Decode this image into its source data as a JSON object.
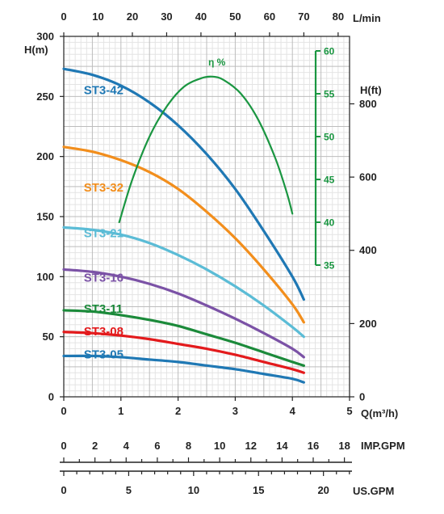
{
  "chart_data": {
    "type": "line",
    "title": "",
    "x_axis": {
      "unit": "Q(m³/h)",
      "range": [
        0,
        5
      ],
      "ticks": [
        0,
        1,
        2,
        3,
        4,
        5
      ]
    },
    "x_top_axis": {
      "unit": "L/min",
      "range": [
        0,
        83.33
      ],
      "ticks": [
        0,
        10,
        20,
        30,
        40,
        50,
        60,
        70,
        80
      ]
    },
    "y_axis": {
      "unit": "H(m)",
      "range": [
        0,
        300
      ],
      "ticks": [
        0,
        50,
        100,
        150,
        200,
        250,
        300
      ]
    },
    "y_right_axis": {
      "unit": "H(ft)",
      "range": [
        0,
        984.25
      ],
      "ticks": [
        0,
        200,
        400,
        600,
        800
      ]
    },
    "efficiency_axis": {
      "label": "η %",
      "range": [
        35,
        60
      ],
      "ticks": [
        35,
        40,
        45,
        50,
        55,
        60
      ],
      "color": "#1a9641"
    },
    "imp_gpm_axis": {
      "unit": "IMP.GPM",
      "range": [
        0,
        18.33
      ],
      "ticks": [
        0,
        2,
        4,
        6,
        8,
        10,
        12,
        14,
        16,
        18
      ]
    },
    "us_gpm_axis": {
      "unit": "US.GPM",
      "range": [
        0,
        22.01
      ],
      "ticks": [
        0,
        5,
        10,
        15,
        20
      ]
    },
    "grid": true,
    "series": [
      {
        "name": "ST3-42",
        "color": "#1f78b4",
        "label_at": [
          0.35,
          252
        ],
        "points": [
          [
            0,
            273
          ],
          [
            0.5,
            268
          ],
          [
            1.0,
            259
          ],
          [
            1.5,
            245
          ],
          [
            2.0,
            226
          ],
          [
            2.5,
            202
          ],
          [
            3.0,
            173
          ],
          [
            3.5,
            138
          ],
          [
            4.0,
            100
          ],
          [
            4.2,
            81
          ]
        ]
      },
      {
        "name": "ST3-32",
        "color": "#f28e1c",
        "label_at": [
          0.35,
          171
        ],
        "points": [
          [
            0,
            208
          ],
          [
            0.5,
            204
          ],
          [
            1.0,
            197
          ],
          [
            1.5,
            187
          ],
          [
            2.0,
            173
          ],
          [
            2.5,
            154
          ],
          [
            3.0,
            132
          ],
          [
            3.5,
            106
          ],
          [
            4.0,
            77
          ],
          [
            4.2,
            62
          ]
        ]
      },
      {
        "name": "ST3-21",
        "color": "#5bbcd6",
        "label_at": [
          0.35,
          133
        ],
        "points": [
          [
            0,
            141
          ],
          [
            0.5,
            139
          ],
          [
            1.0,
            135
          ],
          [
            1.5,
            128
          ],
          [
            2.0,
            118
          ],
          [
            2.5,
            106
          ],
          [
            3.0,
            92
          ],
          [
            3.5,
            76
          ],
          [
            4.0,
            58
          ],
          [
            4.2,
            50
          ]
        ]
      },
      {
        "name": "ST3-16",
        "color": "#7b52a6",
        "label_at": [
          0.35,
          96
        ],
        "points": [
          [
            0,
            106
          ],
          [
            0.5,
            104
          ],
          [
            1.0,
            100
          ],
          [
            1.5,
            94
          ],
          [
            2.0,
            86
          ],
          [
            2.5,
            76
          ],
          [
            3.0,
            65
          ],
          [
            3.5,
            53
          ],
          [
            4.0,
            40
          ],
          [
            4.2,
            33
          ]
        ]
      },
      {
        "name": "ST3-11",
        "color": "#1b8a3a",
        "label_at": [
          0.35,
          70
        ],
        "points": [
          [
            0,
            72
          ],
          [
            0.5,
            71
          ],
          [
            1.0,
            68
          ],
          [
            1.5,
            64
          ],
          [
            2.0,
            59
          ],
          [
            2.5,
            52
          ],
          [
            3.0,
            45
          ],
          [
            3.5,
            37
          ],
          [
            4.0,
            29
          ],
          [
            4.2,
            26
          ]
        ]
      },
      {
        "name": "ST3-08",
        "color": "#e31a1c",
        "label_at": [
          0.35,
          51
        ],
        "points": [
          [
            0,
            54
          ],
          [
            0.5,
            53
          ],
          [
            1.0,
            51
          ],
          [
            1.5,
            48
          ],
          [
            2.0,
            44
          ],
          [
            2.5,
            40
          ],
          [
            3.0,
            35
          ],
          [
            3.5,
            29
          ],
          [
            4.0,
            23
          ],
          [
            4.2,
            20
          ]
        ]
      },
      {
        "name": "ST3-05",
        "color": "#1f78b4",
        "label_at": [
          0.35,
          32
        ],
        "points": [
          [
            0,
            34
          ],
          [
            0.5,
            34
          ],
          [
            1.0,
            33
          ],
          [
            1.5,
            31
          ],
          [
            2.0,
            29
          ],
          [
            2.5,
            26
          ],
          [
            3.0,
            23
          ],
          [
            3.5,
            19
          ],
          [
            4.0,
            15
          ],
          [
            4.2,
            12
          ]
        ]
      },
      {
        "name": "η %",
        "axis": "efficiency",
        "color": "#1a9641",
        "points": [
          [
            0.97,
            40
          ],
          [
            1.2,
            45
          ],
          [
            1.5,
            50
          ],
          [
            1.8,
            53.5
          ],
          [
            2.1,
            55.8
          ],
          [
            2.4,
            56.8
          ],
          [
            2.6,
            57
          ],
          [
            2.8,
            56.6
          ],
          [
            3.1,
            55
          ],
          [
            3.4,
            52
          ],
          [
            3.7,
            47.5
          ],
          [
            3.9,
            43.5
          ],
          [
            4.0,
            41
          ]
        ]
      }
    ]
  }
}
